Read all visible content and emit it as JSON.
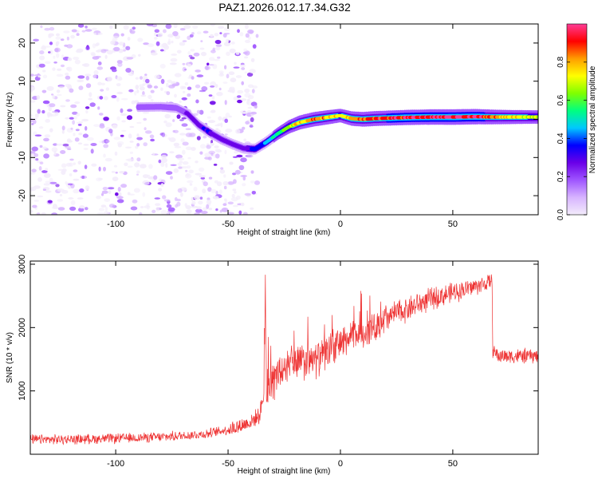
{
  "title": "PAZ1.2026.012.17.34.G32",
  "chart_data": [
    {
      "type": "heatmap",
      "name": "spectrogram",
      "xlabel": "Height of straight line (km)",
      "ylabel": "Frequency (Hz)",
      "xlim": [
        -138,
        88
      ],
      "ylim": [
        -25,
        25
      ],
      "xticks": [
        -100,
        -50,
        0,
        50
      ],
      "yticks": [
        -20,
        -10,
        0,
        10,
        20
      ],
      "colorbar": {
        "label": "Normalized spectral amplitude",
        "range": [
          0,
          1
        ],
        "ticks": [
          0.0,
          0.2,
          0.4,
          0.6,
          0.8
        ],
        "tick_labels": [
          "0.0",
          "0.2",
          "0.4",
          "0.6",
          "0.8"
        ],
        "colormap": [
          "#f3ecfb",
          "#d7b4ff",
          "#9f55ff",
          "#6a00e8",
          "#0000ff",
          "#00c8ff",
          "#00ff80",
          "#7fff00",
          "#ffff00",
          "#ff9d00",
          "#ff0000",
          "#ff3c96"
        ]
      },
      "noise_region": {
        "x_range": [
          -138,
          -37
        ],
        "frequency_range": [
          -25,
          25
        ],
        "amplitude": "low (0.05-0.2)"
      },
      "ridge": {
        "description": "dominant frequency vs height",
        "x": [
          -90,
          -80,
          -73,
          -68,
          -63,
          -58,
          -53,
          -48,
          -43,
          -38,
          -33,
          -28,
          -23,
          -18,
          -12,
          -6,
          0,
          5,
          10,
          15,
          20,
          30,
          40,
          50,
          60,
          70,
          80,
          88
        ],
        "frequency": [
          3.2,
          3.3,
          3.0,
          1.5,
          -1.5,
          -3.5,
          -5.2,
          -6.5,
          -7.6,
          -7.8,
          -6.0,
          -3.8,
          -2.0,
          -0.8,
          0.0,
          0.5,
          1.0,
          0.2,
          0.0,
          0.2,
          0.3,
          0.5,
          0.6,
          0.6,
          0.7,
          0.6,
          0.6,
          0.6
        ],
        "amplitude": [
          0.15,
          0.15,
          0.18,
          0.25,
          0.3,
          0.32,
          0.3,
          0.28,
          0.3,
          0.35,
          0.45,
          0.55,
          0.7,
          0.8,
          0.85,
          0.82,
          0.72,
          0.85,
          0.88,
          0.92,
          0.92,
          0.95,
          0.97,
          1.0,
          0.98,
          0.85,
          0.75,
          0.7
        ]
      }
    },
    {
      "type": "line",
      "name": "snr",
      "xlabel": "Height of straight line (km)",
      "ylabel": "SNR (10 * v/v)",
      "xlim": [
        -138,
        88
      ],
      "ylim": [
        0,
        3050
      ],
      "xticks": [
        -100,
        -50,
        0,
        50
      ],
      "yticks": [
        1000,
        2000,
        3000
      ],
      "series": [
        {
          "name": "SNR",
          "color": "#ee3333",
          "x": [
            -138,
            -120,
            -100,
            -80,
            -60,
            -50,
            -45,
            -40,
            -36,
            -34,
            -33.5,
            -33,
            -32,
            -30,
            -28,
            -25,
            -20,
            -15,
            -10,
            -5,
            0,
            5,
            10,
            15,
            20,
            30,
            40,
            50,
            60,
            65,
            67.5,
            67.8,
            70,
            75,
            80,
            88
          ],
          "values": [
            230,
            235,
            250,
            270,
            320,
            390,
            440,
            510,
            620,
            950,
            2400,
            1150,
            1050,
            1150,
            1250,
            1350,
            1450,
            1450,
            1500,
            1650,
            1750,
            1850,
            1900,
            2000,
            2150,
            2300,
            2450,
            2550,
            2650,
            2700,
            2720,
            1650,
            1550,
            1550,
            1550,
            1550
          ]
        }
      ]
    }
  ]
}
